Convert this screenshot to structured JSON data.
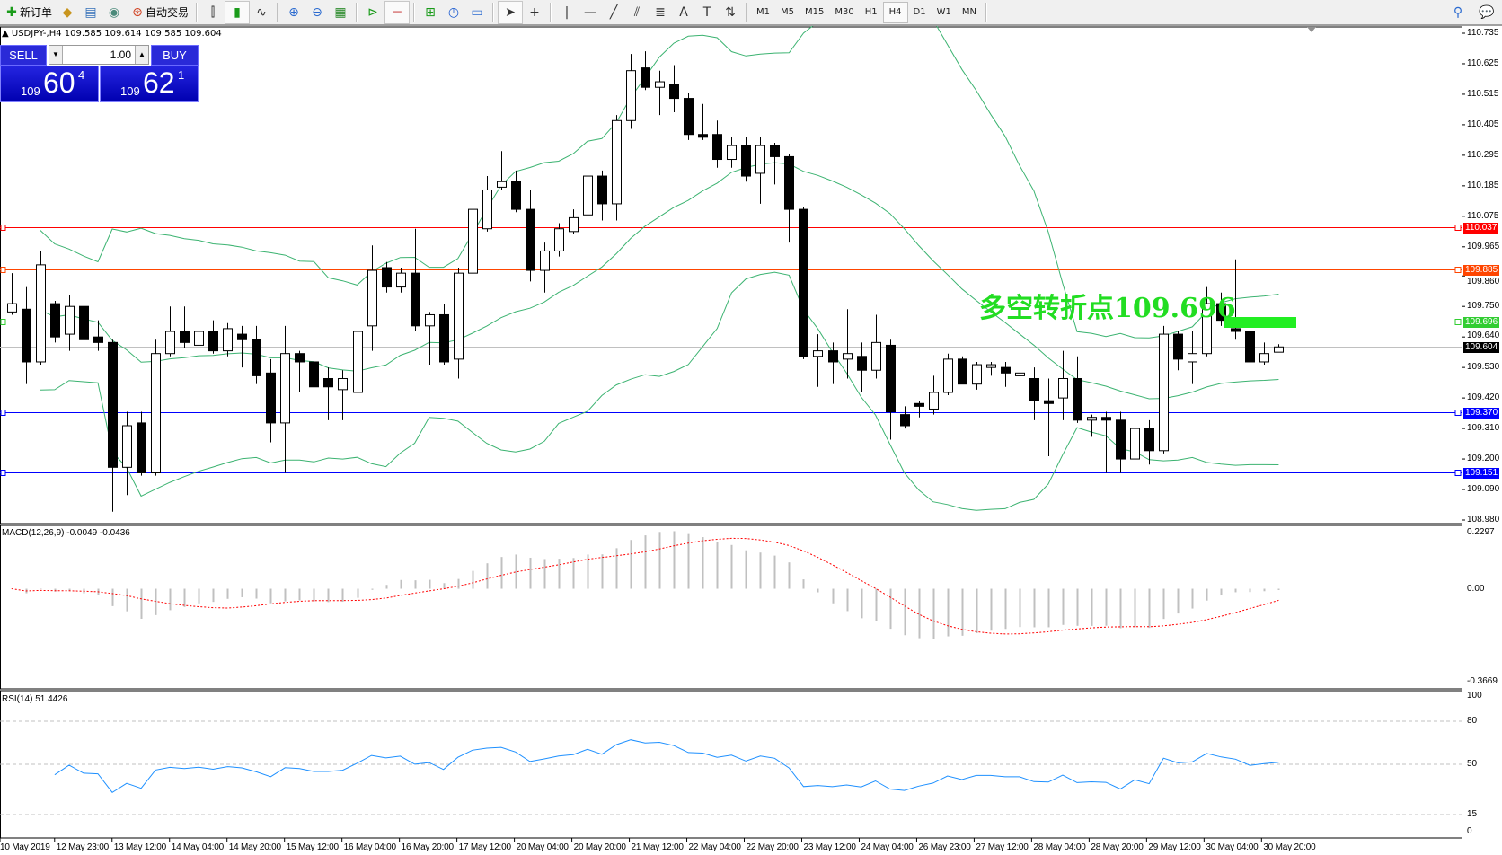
{
  "toolbar": {
    "new_order": "新订单",
    "auto_trading": "自动交易",
    "icons": [
      "new-order-icon",
      "market-watch-icon",
      "navigator-icon",
      "signals-icon",
      "auto-trading-icon",
      "bar-chart-icon",
      "candlestick-icon",
      "line-chart-icon",
      "zoom-in-icon",
      "zoom-out-icon",
      "tile-windows-icon",
      "auto-scroll-icon",
      "chart-shift-icon",
      "indicators-icon",
      "periods-icon",
      "templates-icon",
      "cursor-icon",
      "crosshair-icon",
      "vertical-line-icon",
      "horizontal-line-icon",
      "trendline-icon",
      "equidistant-channel-icon",
      "fibonacci-icon",
      "text-icon",
      "text-label-icon",
      "arrows-icon"
    ],
    "timeframes": [
      "M1",
      "M5",
      "M15",
      "M30",
      "H1",
      "H4",
      "D1",
      "W1",
      "MN"
    ],
    "active_timeframe": "H4"
  },
  "chart": {
    "header": "USDJPY-,H4  109.585 109.614 109.585 109.604",
    "symbol": "USDJPY-",
    "one_click": {
      "sell_label": "SELL",
      "buy_label": "BUY",
      "lot": "1.00",
      "sell_big": "109",
      "sell_main": "60",
      "sell_sup": "4",
      "buy_big": "109",
      "buy_main": "62",
      "buy_sup": "1"
    },
    "annotation": "多空转折点109.696",
    "annotation_color": "#22dd22",
    "price_axis": [
      "110.735",
      "110.625",
      "110.515",
      "110.405",
      "110.295",
      "110.185",
      "110.075",
      "109.965",
      "109.860",
      "109.750",
      "109.640",
      "109.530",
      "109.420",
      "109.310",
      "109.200",
      "109.090",
      "108.980"
    ],
    "price_range": [
      108.98,
      110.735
    ],
    "levels": [
      {
        "price": 110.037,
        "label": "110.037",
        "color": "#ff0000"
      },
      {
        "price": 109.885,
        "label": "109.885",
        "color": "#ff4500"
      },
      {
        "price": 109.696,
        "label": "109.696",
        "color": "#32cd32"
      },
      {
        "price": 109.604,
        "label": "109.604",
        "color": "#000000",
        "line": "#c0c0c0"
      },
      {
        "price": 109.37,
        "label": "109.370",
        "color": "#0000ff"
      },
      {
        "price": 109.151,
        "label": "109.151",
        "color": "#0000ff"
      }
    ],
    "candles_ohlc": [
      [
        109.73,
        109.87,
        109.72,
        109.76
      ],
      [
        109.74,
        109.82,
        109.47,
        109.55
      ],
      [
        109.55,
        109.95,
        109.54,
        109.9
      ],
      [
        109.76,
        109.77,
        109.62,
        109.64
      ],
      [
        109.65,
        109.79,
        109.59,
        109.75
      ],
      [
        109.75,
        109.77,
        109.61,
        109.63
      ],
      [
        109.64,
        109.7,
        109.59,
        109.62
      ],
      [
        109.62,
        109.63,
        109.01,
        109.17
      ],
      [
        109.17,
        109.37,
        109.07,
        109.32
      ],
      [
        109.33,
        109.37,
        109.14,
        109.15
      ],
      [
        109.15,
        109.63,
        109.14,
        109.58
      ],
      [
        109.58,
        109.75,
        109.57,
        109.66
      ],
      [
        109.66,
        109.75,
        109.6,
        109.62
      ],
      [
        109.61,
        109.7,
        109.44,
        109.66
      ],
      [
        109.66,
        109.7,
        109.58,
        109.59
      ],
      [
        109.59,
        109.69,
        109.57,
        109.67
      ],
      [
        109.65,
        109.68,
        109.53,
        109.63
      ],
      [
        109.63,
        109.68,
        109.47,
        109.5
      ],
      [
        109.51,
        109.56,
        109.26,
        109.33
      ],
      [
        109.33,
        109.68,
        109.15,
        109.58
      ],
      [
        109.58,
        109.59,
        109.44,
        109.55
      ],
      [
        109.55,
        109.58,
        109.41,
        109.46
      ],
      [
        109.49,
        109.53,
        109.34,
        109.46
      ],
      [
        109.45,
        109.52,
        109.34,
        109.49
      ],
      [
        109.44,
        109.72,
        109.41,
        109.66
      ],
      [
        109.68,
        109.97,
        109.59,
        109.88
      ],
      [
        109.89,
        109.91,
        109.8,
        109.82
      ],
      [
        109.82,
        109.89,
        109.8,
        109.87
      ],
      [
        109.87,
        110.03,
        109.66,
        109.68
      ],
      [
        109.68,
        109.73,
        109.54,
        109.72
      ],
      [
        109.72,
        109.76,
        109.54,
        109.55
      ],
      [
        109.56,
        109.89,
        109.49,
        109.87
      ],
      [
        109.87,
        110.2,
        109.85,
        110.1
      ],
      [
        110.03,
        110.22,
        110.02,
        110.17
      ],
      [
        110.18,
        110.31,
        110.17,
        110.2
      ],
      [
        110.2,
        110.24,
        110.09,
        110.1
      ],
      [
        110.1,
        110.17,
        109.84,
        109.88
      ],
      [
        109.88,
        109.98,
        109.8,
        109.95
      ],
      [
        109.95,
        110.05,
        109.93,
        110.03
      ],
      [
        110.02,
        110.1,
        110.01,
        110.07
      ],
      [
        110.08,
        110.26,
        110.04,
        110.22
      ],
      [
        110.22,
        110.24,
        110.06,
        110.12
      ],
      [
        110.12,
        110.44,
        110.06,
        110.42
      ],
      [
        110.42,
        110.66,
        110.39,
        110.6
      ],
      [
        110.61,
        110.67,
        110.53,
        110.54
      ],
      [
        110.54,
        110.6,
        110.44,
        110.56
      ],
      [
        110.55,
        110.62,
        110.45,
        110.5
      ],
      [
        110.5,
        110.52,
        110.35,
        110.37
      ],
      [
        110.37,
        110.48,
        110.35,
        110.36
      ],
      [
        110.37,
        110.42,
        110.25,
        110.28
      ],
      [
        110.28,
        110.36,
        110.25,
        110.33
      ],
      [
        110.33,
        110.36,
        110.2,
        110.22
      ],
      [
        110.23,
        110.36,
        110.12,
        110.33
      ],
      [
        110.33,
        110.34,
        110.19,
        110.29
      ],
      [
        110.29,
        110.3,
        109.98,
        110.1
      ],
      [
        110.1,
        110.11,
        109.56,
        109.57
      ],
      [
        109.57,
        109.65,
        109.46,
        109.59
      ],
      [
        109.59,
        109.62,
        109.47,
        109.55
      ],
      [
        109.56,
        109.74,
        109.49,
        109.58
      ],
      [
        109.57,
        109.62,
        109.44,
        109.52
      ],
      [
        109.52,
        109.72,
        109.49,
        109.62
      ],
      [
        109.61,
        109.63,
        109.27,
        109.37
      ],
      [
        109.36,
        109.39,
        109.31,
        109.32
      ],
      [
        109.4,
        109.41,
        109.35,
        109.39
      ],
      [
        109.38,
        109.5,
        109.36,
        109.44
      ],
      [
        109.44,
        109.58,
        109.43,
        109.56
      ],
      [
        109.56,
        109.57,
        109.47,
        109.47
      ],
      [
        109.47,
        109.55,
        109.45,
        109.54
      ],
      [
        109.53,
        109.55,
        109.5,
        109.54
      ],
      [
        109.53,
        109.55,
        109.46,
        109.51
      ],
      [
        109.5,
        109.62,
        109.44,
        109.51
      ],
      [
        109.49,
        109.53,
        109.34,
        109.41
      ],
      [
        109.41,
        109.49,
        109.21,
        109.4
      ],
      [
        109.42,
        109.59,
        109.34,
        109.49
      ],
      [
        109.49,
        109.57,
        109.33,
        109.34
      ],
      [
        109.34,
        109.36,
        109.28,
        109.35
      ],
      [
        109.35,
        109.37,
        109.15,
        109.34
      ],
      [
        109.34,
        109.37,
        109.15,
        109.2
      ],
      [
        109.2,
        109.41,
        109.18,
        109.31
      ],
      [
        109.31,
        109.34,
        109.18,
        109.23
      ],
      [
        109.23,
        109.68,
        109.22,
        109.65
      ],
      [
        109.65,
        109.66,
        109.52,
        109.56
      ],
      [
        109.55,
        109.66,
        109.47,
        109.58
      ],
      [
        109.58,
        109.82,
        109.57,
        109.76
      ],
      [
        109.76,
        109.8,
        109.68,
        109.7
      ],
      [
        109.67,
        109.92,
        109.63,
        109.66
      ],
      [
        109.66,
        109.67,
        109.47,
        109.55
      ],
      [
        109.55,
        109.62,
        109.54,
        109.58
      ],
      [
        109.585,
        109.614,
        109.585,
        109.604
      ]
    ],
    "time_axis": [
      "10 May 2019",
      "12 May 23:00",
      "13 May 12:00",
      "14 May 04:00",
      "14 May 20:00",
      "15 May 12:00",
      "16 May 04:00",
      "16 May 20:00",
      "17 May 12:00",
      "20 May 04:00",
      "20 May 20:00",
      "21 May 12:00",
      "22 May 04:00",
      "22 May 20:00",
      "23 May 12:00",
      "24 May 04:00",
      "26 May 23:00",
      "27 May 12:00",
      "28 May 04:00",
      "28 May 20:00",
      "29 May 12:00",
      "30 May 04:00",
      "30 May 20:00"
    ],
    "bollinger_color": "#3cb371"
  },
  "macd": {
    "title": "MACD(12,26,9) -0.0049 -0.0436",
    "axis": [
      "0.2297",
      "0.00",
      "-0.3669"
    ],
    "range": [
      -0.3669,
      0.2297
    ],
    "hist_color": "#c0c0c0",
    "signal_color": "#ff0000"
  },
  "rsi": {
    "title": "RSI(14) 51.4426",
    "axis": [
      "100",
      "80",
      "50",
      "15",
      "0"
    ],
    "levels": [
      80,
      50,
      15
    ],
    "color": "#1e90ff"
  }
}
